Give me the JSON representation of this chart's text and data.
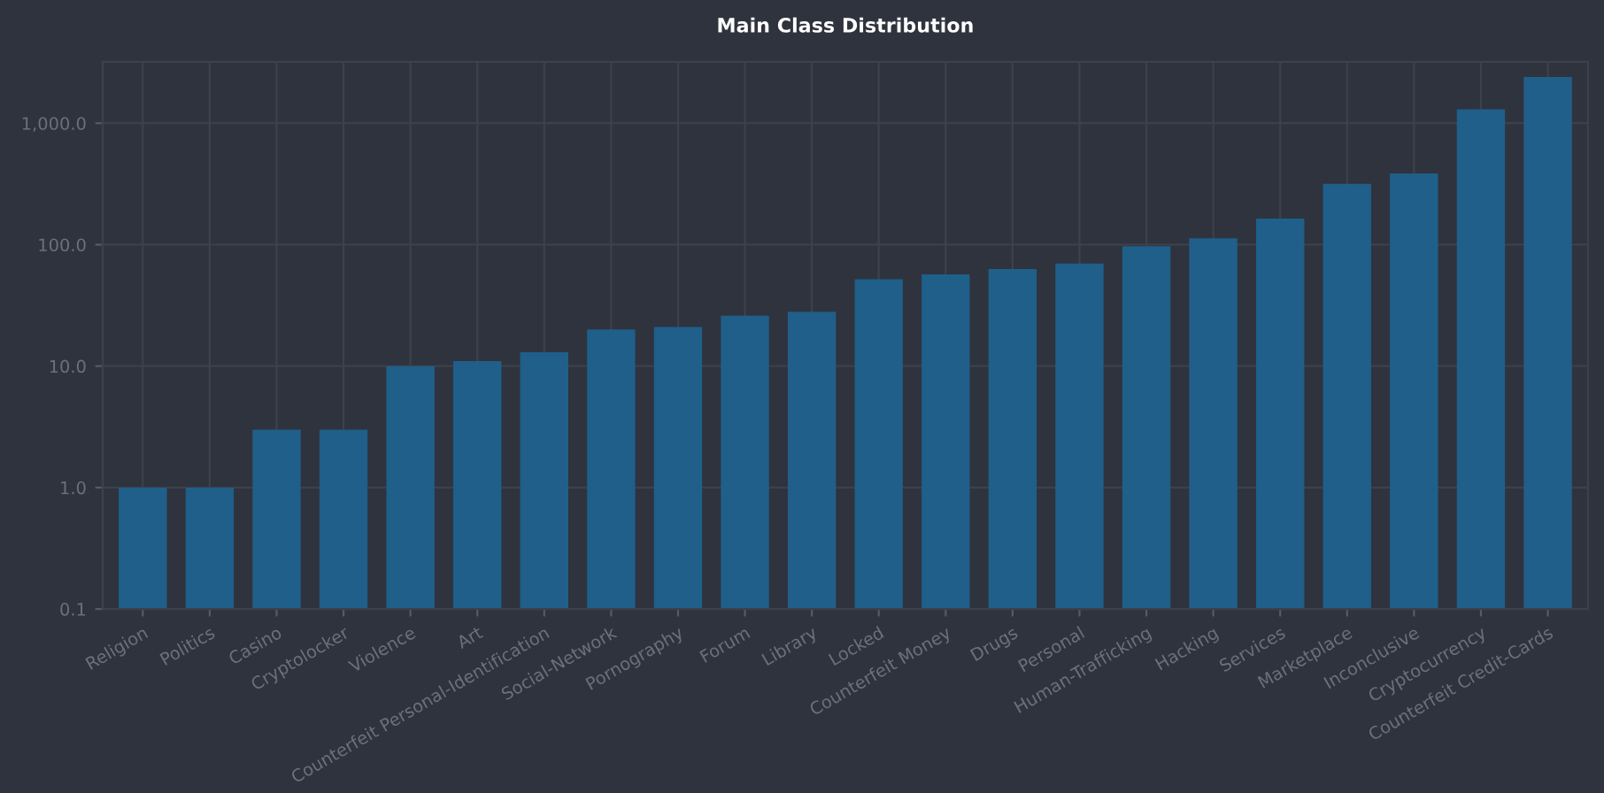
{
  "chart_data": {
    "type": "bar",
    "title": "Main Class Distribution",
    "categories": [
      "Religion",
      "Politics",
      "Casino",
      "Cryptolocker",
      "Violence",
      "Art",
      "Counterfeit Personal-Identification",
      "Social-Network",
      "Pornography",
      "Forum",
      "Library",
      "Locked",
      "Counterfeit Money",
      "Drugs",
      "Personal",
      "Human-Trafficking",
      "Hacking",
      "Services",
      "Marketplace",
      "Inconclusive",
      "Cryptocurrency",
      "Counterfeit Credit-Cards"
    ],
    "values": [
      1,
      1,
      3,
      3,
      10,
      11,
      13,
      20,
      21,
      26,
      28,
      52,
      57,
      63,
      70,
      97,
      113,
      164,
      316,
      385,
      1300,
      2400
    ],
    "color": "#1f5f8a",
    "log": "y",
    "ylim": [
      0.1,
      3200
    ],
    "yticks": [
      {
        "value": 0.1,
        "label": "0.1"
      },
      {
        "value": 1,
        "label": "1.0"
      },
      {
        "value": 10,
        "label": "10.0"
      },
      {
        "value": 100,
        "label": "100.0"
      },
      {
        "value": 1000,
        "label": "1,000.0"
      }
    ],
    "grid": true
  }
}
